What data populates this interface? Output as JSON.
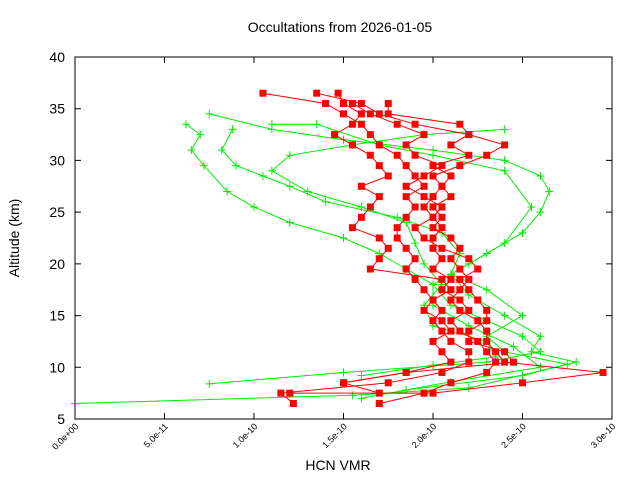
{
  "chart_data": {
    "type": "line",
    "title": "Occultations from 2026-01-05",
    "xlabel": "HCN VMR",
    "ylabel": "Altitude (km)",
    "xlim": [
      0,
      3e-10
    ],
    "ylim": [
      5,
      40
    ],
    "x_ticks": [
      "0.0e+00",
      "5.0e-11",
      "1.0e-10",
      "1.5e-10",
      "2.0e-10",
      "2.5e-10",
      "3.0e-10"
    ],
    "x_tick_values": [
      0,
      5e-11,
      1e-10,
      1.5e-10,
      2e-10,
      2.5e-10,
      3e-10
    ],
    "y_ticks": [
      "5",
      "10",
      "15",
      "20",
      "25",
      "30",
      "35",
      "40"
    ],
    "y_tick_values": [
      5,
      10,
      15,
      20,
      25,
      30,
      35,
      40
    ],
    "grid": false,
    "legend": "none",
    "colors": {
      "green_series": "#00ee00",
      "red_series": "#ff0000"
    },
    "series": [
      {
        "color": "#00ee00",
        "marker": "plus",
        "points": [
          [
            0.0,
            6.5
          ],
          [
            1.55e-10,
            7.3
          ],
          [
            2.2e-10,
            8.0
          ],
          [
            2.8e-10,
            10.5
          ],
          [
            2.55e-10,
            11.5
          ],
          [
            2.6e-10,
            13
          ],
          [
            2.4e-10,
            15
          ],
          [
            2.2e-10,
            17
          ],
          [
            2.1e-10,
            19
          ],
          [
            2.3e-10,
            21
          ],
          [
            2.5e-10,
            23
          ],
          [
            2.6e-10,
            25
          ],
          [
            2.65e-10,
            27
          ],
          [
            2.6e-10,
            28.5
          ],
          [
            2.4e-10,
            30
          ],
          [
            2e-10,
            31
          ],
          [
            1.5e-10,
            32
          ],
          [
            1.1e-10,
            33
          ],
          [
            7.5e-11,
            34.5
          ]
        ]
      },
      {
        "color": "#00ee00",
        "marker": "plus",
        "points": [
          [
            7.5e-11,
            8.4
          ],
          [
            1.5e-10,
            9.5
          ],
          [
            2.3e-10,
            10.5
          ],
          [
            2.6e-10,
            11.5
          ],
          [
            2.5e-10,
            13
          ],
          [
            2.3e-10,
            14.5
          ],
          [
            2.1e-10,
            16
          ],
          [
            2e-10,
            18
          ],
          [
            1.85e-10,
            19.5
          ],
          [
            1.7e-10,
            21
          ],
          [
            1.5e-10,
            22.5
          ],
          [
            1.2e-10,
            24
          ],
          [
            1e-10,
            25.5
          ],
          [
            8.5e-11,
            27
          ],
          [
            7.2e-11,
            29.5
          ],
          [
            6.5e-11,
            31
          ],
          [
            7e-11,
            32.5
          ],
          [
            6.2e-11,
            33.5
          ]
        ]
      },
      {
        "color": "#00ee00",
        "marker": "plus",
        "points": [
          [
            1.6e-10,
            7.0
          ],
          [
            2.1e-10,
            8.6
          ],
          [
            2.6e-10,
            10
          ],
          [
            2.45e-10,
            12
          ],
          [
            2.2e-10,
            14
          ],
          [
            2e-10,
            16
          ],
          [
            2e-10,
            18
          ],
          [
            2.2e-10,
            20
          ],
          [
            2.4e-10,
            22
          ],
          [
            2.55e-10,
            25.5
          ],
          [
            2.4e-10,
            29
          ],
          [
            2e-10,
            30.5
          ],
          [
            1.7e-10,
            31.5
          ],
          [
            1.35e-10,
            33.5
          ],
          [
            1.1e-10,
            33.5
          ]
        ]
      },
      {
        "color": "#00ee00",
        "marker": "plus",
        "points": [
          [
            1.85e-10,
            7.8
          ],
          [
            2.5e-10,
            9.2
          ],
          [
            2.75e-10,
            10.3
          ],
          [
            2.4e-10,
            11.5
          ],
          [
            2.3e-10,
            13
          ],
          [
            2.5e-10,
            15
          ],
          [
            2.3e-10,
            17.5
          ],
          [
            2.1e-10,
            19
          ],
          [
            2.15e-10,
            21
          ],
          [
            2.05e-10,
            23
          ],
          [
            1.8e-10,
            24.5
          ],
          [
            1.4e-10,
            26
          ],
          [
            1.2e-10,
            27.5
          ],
          [
            1.05e-10,
            28.5
          ],
          [
            9e-11,
            29.5
          ],
          [
            8.2e-11,
            31
          ],
          [
            8.8e-11,
            33
          ]
        ]
      },
      {
        "color": "#00ee00",
        "marker": "plus",
        "points": [
          [
            1.6e-10,
            9.2
          ],
          [
            2e-10,
            10.2
          ],
          [
            2.35e-10,
            11
          ],
          [
            2.3e-10,
            12.5
          ],
          [
            2e-10,
            14
          ],
          [
            1.95e-10,
            16
          ],
          [
            2.05e-10,
            18
          ],
          [
            1.95e-10,
            20
          ],
          [
            1.9e-10,
            22
          ],
          [
            1.85e-10,
            24
          ],
          [
            1.6e-10,
            25.5
          ],
          [
            1.3e-10,
            27
          ],
          [
            1.1e-10,
            29
          ],
          [
            1.2e-10,
            30.5
          ],
          [
            1.55e-10,
            31.5
          ],
          [
            1.95e-10,
            32.5
          ],
          [
            2.4e-10,
            33
          ]
        ]
      },
      {
        "color": "#ff0000",
        "marker": "square",
        "points": [
          [
            1.22e-10,
            6.5
          ],
          [
            1.15e-10,
            7.5
          ],
          [
            1.75e-10,
            8.5
          ],
          [
            2.05e-10,
            9.5
          ],
          [
            2.2e-10,
            10.5
          ],
          [
            2.2e-10,
            11.5
          ],
          [
            2.1e-10,
            12.5
          ],
          [
            2.05e-10,
            13.5
          ],
          [
            2e-10,
            14.5
          ],
          [
            2.05e-10,
            15.5
          ],
          [
            2e-10,
            16.5
          ],
          [
            1.95e-10,
            17.5
          ],
          [
            1.9e-10,
            18.5
          ],
          [
            1.85e-10,
            19.5
          ],
          [
            1.9e-10,
            20.5
          ],
          [
            1.85e-10,
            21.5
          ],
          [
            1.8e-10,
            22.5
          ],
          [
            1.8e-10,
            23.5
          ],
          [
            1.85e-10,
            24.5
          ],
          [
            1.9e-10,
            25.5
          ],
          [
            1.85e-10,
            26.5
          ],
          [
            1.95e-10,
            27.5
          ],
          [
            1.9e-10,
            28.5
          ],
          [
            1.85e-10,
            29.5
          ],
          [
            1.8e-10,
            30.5
          ],
          [
            1.7e-10,
            31.5
          ],
          [
            1.65e-10,
            32.5
          ],
          [
            1.6e-10,
            33.5
          ],
          [
            1.5e-10,
            34.5
          ],
          [
            1.4e-10,
            35.5
          ],
          [
            1.05e-10,
            36.5
          ]
        ]
      },
      {
        "color": "#ff0000",
        "marker": "square",
        "points": [
          [
            1.7e-10,
            6.5
          ],
          [
            1.95e-10,
            7.5
          ],
          [
            2.1e-10,
            8.5
          ],
          [
            2.3e-10,
            9.5
          ],
          [
            2.35e-10,
            10.5
          ],
          [
            2.3e-10,
            11.5
          ],
          [
            2.25e-10,
            12.5
          ],
          [
            2.15e-10,
            13.5
          ],
          [
            2.1e-10,
            14.5
          ],
          [
            2.2e-10,
            15.5
          ],
          [
            2.15e-10,
            16.5
          ],
          [
            2.05e-10,
            17.5
          ],
          [
            2.1e-10,
            18.5
          ],
          [
            2e-10,
            19.5
          ],
          [
            2.05e-10,
            20.5
          ],
          [
            2e-10,
            21.5
          ],
          [
            2e-10,
            22.5
          ],
          [
            2.05e-10,
            23.5
          ],
          [
            2e-10,
            24.5
          ],
          [
            1.95e-10,
            25.5
          ],
          [
            2e-10,
            26.5
          ],
          [
            2.05e-10,
            27.5
          ],
          [
            2e-10,
            28.5
          ],
          [
            2.15e-10,
            29.5
          ],
          [
            2.3e-10,
            30.5
          ],
          [
            2.4e-10,
            31.5
          ],
          [
            2.2e-10,
            32.5
          ],
          [
            1.9e-10,
            33.5
          ],
          [
            1.7e-10,
            34.5
          ],
          [
            1.6e-10,
            35.5
          ],
          [
            1.35e-10,
            36.5
          ]
        ]
      },
      {
        "color": "#ff0000",
        "marker": "square",
        "points": [
          [
            1.7e-10,
            7.5
          ],
          [
            1.5e-10,
            8.5
          ],
          [
            1.85e-10,
            9.5
          ],
          [
            2.1e-10,
            10.5
          ],
          [
            2.05e-10,
            11.5
          ],
          [
            2e-10,
            12.5
          ],
          [
            2.1e-10,
            13.5
          ],
          [
            2.05e-10,
            14.5
          ],
          [
            1.95e-10,
            15.5
          ],
          [
            2e-10,
            16.5
          ],
          [
            2.1e-10,
            17.5
          ],
          [
            2.05e-10,
            18.5
          ],
          [
            1.65e-10,
            19.5
          ],
          [
            1.7e-10,
            20.5
          ],
          [
            1.75e-10,
            21.5
          ],
          [
            1.7e-10,
            22.5
          ],
          [
            1.55e-10,
            23.5
          ],
          [
            1.6e-10,
            24.5
          ],
          [
            1.65e-10,
            25.5
          ],
          [
            1.7e-10,
            26.5
          ],
          [
            1.6e-10,
            27.5
          ],
          [
            1.75e-10,
            28.5
          ],
          [
            1.7e-10,
            29.5
          ],
          [
            1.65e-10,
            30.5
          ],
          [
            1.55e-10,
            31.5
          ],
          [
            1.45e-10,
            32.5
          ],
          [
            1.55e-10,
            33.5
          ],
          [
            1.6e-10,
            34.5
          ],
          [
            1.5e-10,
            35.5
          ],
          [
            1.47e-10,
            36.5
          ]
        ]
      },
      {
        "color": "#ff0000",
        "marker": "square",
        "points": [
          [
            1.2e-10,
            7.5
          ],
          [
            2e-10,
            7.5
          ],
          [
            2.5e-10,
            8.5
          ],
          [
            2.95e-10,
            9.5
          ],
          [
            2.4e-10,
            10.5
          ],
          [
            2.35e-10,
            11.5
          ],
          [
            2.3e-10,
            12.5
          ],
          [
            2.3e-10,
            13.5
          ],
          [
            2.25e-10,
            14.5
          ],
          [
            2.15e-10,
            15.5
          ],
          [
            2.1e-10,
            16.5
          ],
          [
            2.15e-10,
            17.5
          ],
          [
            2.2e-10,
            18.5
          ],
          [
            2.15e-10,
            19.5
          ],
          [
            2.1e-10,
            20.5
          ],
          [
            2.15e-10,
            21.5
          ],
          [
            2.1e-10,
            22.5
          ],
          [
            2e-10,
            23.5
          ],
          [
            2.05e-10,
            24.5
          ],
          [
            2e-10,
            25.5
          ],
          [
            2.1e-10,
            26.5
          ],
          [
            2.05e-10,
            27.5
          ],
          [
            2.1e-10,
            28.5
          ],
          [
            2e-10,
            29.5
          ],
          [
            2.2e-10,
            30.5
          ],
          [
            2.1e-10,
            31.5
          ],
          [
            2.2e-10,
            32.5
          ],
          [
            2.15e-10,
            33.5
          ],
          [
            1.75e-10,
            34.5
          ],
          [
            1.75e-10,
            35.5
          ]
        ]
      },
      {
        "color": "#ff0000",
        "marker": "square",
        "points": [
          [
            1.5e-10,
            8.5
          ],
          [
            1.85e-10,
            9.5
          ],
          [
            2.45e-10,
            10.5
          ],
          [
            2.4e-10,
            11.5
          ],
          [
            2.2e-10,
            12.5
          ],
          [
            2.2e-10,
            13.5
          ],
          [
            2.3e-10,
            14.5
          ],
          [
            2.3e-10,
            15.5
          ],
          [
            2.25e-10,
            16.5
          ],
          [
            2.2e-10,
            17.5
          ],
          [
            2.15e-10,
            18.5
          ],
          [
            2.25e-10,
            19.5
          ],
          [
            2.2e-10,
            20.5
          ],
          [
            2.05e-10,
            21.5
          ],
          [
            1.95e-10,
            22.5
          ],
          [
            1.9e-10,
            23.5
          ],
          [
            2e-10,
            24.5
          ],
          [
            2.05e-10,
            25.5
          ],
          [
            1.95e-10,
            26.5
          ],
          [
            1.85e-10,
            27.5
          ],
          [
            1.95e-10,
            28.5
          ],
          [
            2.05e-10,
            29.5
          ],
          [
            1.9e-10,
            30.5
          ],
          [
            1.85e-10,
            31.5
          ],
          [
            1.95e-10,
            32.5
          ],
          [
            1.8e-10,
            33.5
          ],
          [
            1.65e-10,
            34.5
          ],
          [
            1.55e-10,
            35.5
          ]
        ]
      }
    ]
  }
}
